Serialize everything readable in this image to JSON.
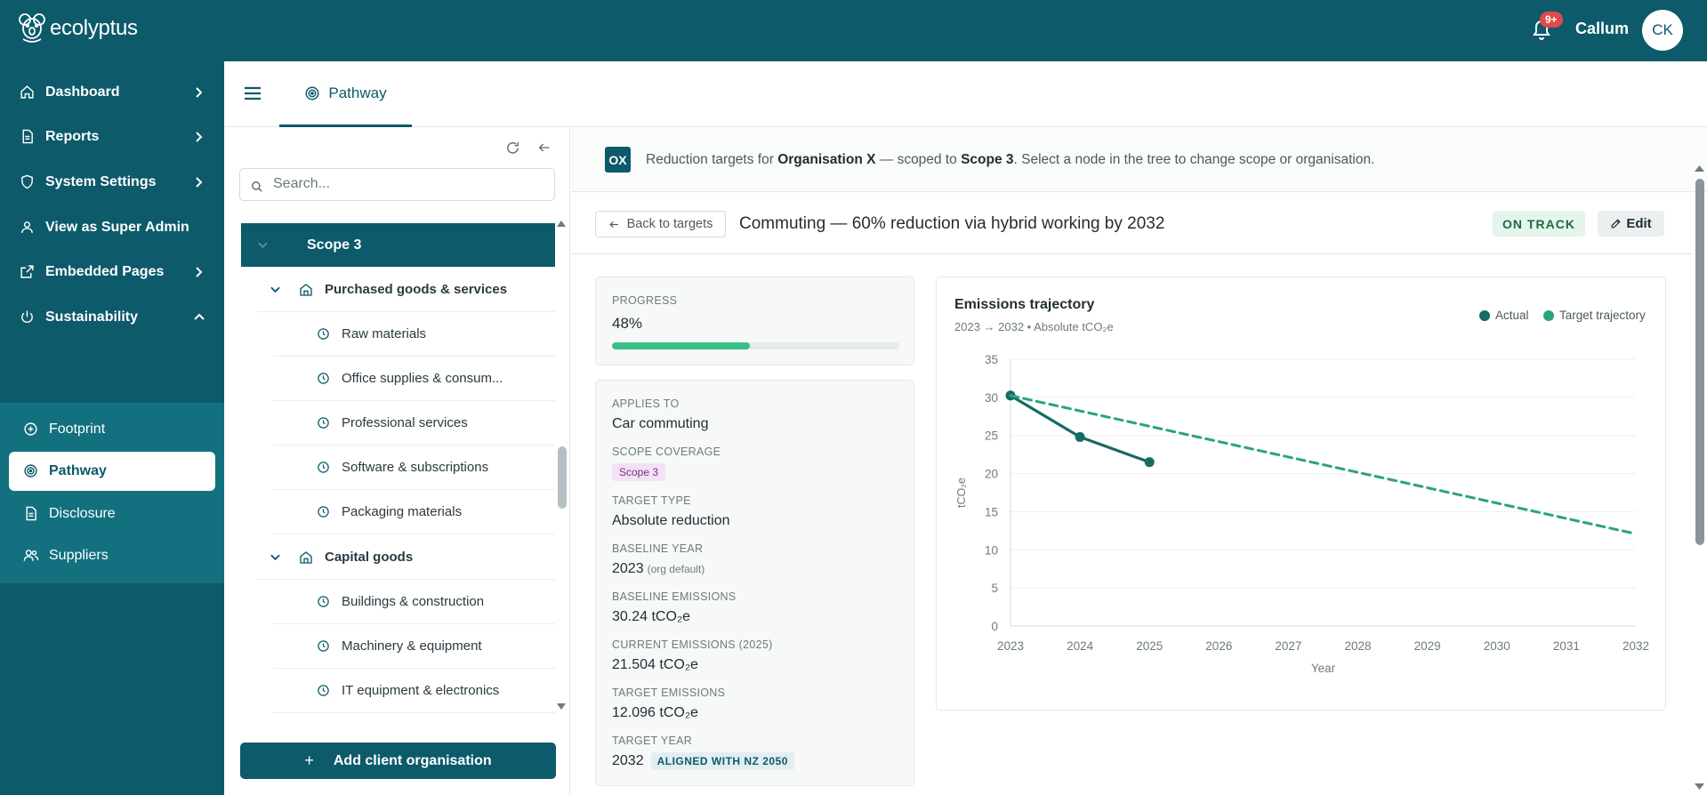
{
  "app": {
    "brand": "ecolyptus"
  },
  "header": {
    "notification_badge": "9+",
    "user_name": "Callum",
    "avatar_initials": "CK"
  },
  "sidebar": {
    "items": [
      {
        "label": "Dashboard",
        "icon": "home-icon"
      },
      {
        "label": "Reports",
        "icon": "document-icon"
      },
      {
        "label": "System Settings",
        "icon": "shield-icon"
      },
      {
        "label": "View as Super Admin",
        "icon": "user-icon"
      },
      {
        "label": "Embedded Pages",
        "icon": "external-link-icon"
      },
      {
        "label": "Sustainability",
        "icon": "power-icon"
      }
    ],
    "sub_items": [
      {
        "label": "Footprint",
        "icon": "plus-circle-icon"
      },
      {
        "label": "Pathway",
        "icon": "target-icon",
        "active": true
      },
      {
        "label": "Disclosure",
        "icon": "document-icon"
      },
      {
        "label": "Suppliers",
        "icon": "users-icon"
      }
    ]
  },
  "tabs": {
    "active": "Pathway"
  },
  "tree": {
    "search_placeholder": "Search...",
    "scope": "Scope 3",
    "groups": [
      {
        "label": "Purchased goods & services",
        "children": [
          "Raw materials",
          "Office supplies & consum...",
          "Professional services",
          "Software & subscriptions",
          "Packaging materials"
        ]
      },
      {
        "label": "Capital goods",
        "children": [
          "Buildings & construction",
          "Machinery & equipment",
          "IT equipment & electronics"
        ]
      }
    ],
    "add_button": "Add client organisation"
  },
  "info_bar": {
    "badge": "OX",
    "prefix": "Reduction targets for ",
    "organisation": "Organisation X",
    "middle": " — scoped to ",
    "scope": "Scope 3",
    "suffix": ". Select a node in the tree to change scope or organisation."
  },
  "target": {
    "back_label": "Back to targets",
    "title": "Commuting — 60% reduction via hybrid working by 2032",
    "status": "ON TRACK",
    "edit_label": "Edit"
  },
  "progress": {
    "label": "PROGRESS",
    "value_text": "48%",
    "fraction": 0.48,
    "color": "#3bbf86"
  },
  "details": {
    "applies_to_label": "APPLIES TO",
    "applies_to": "Car commuting",
    "scope_coverage_label": "SCOPE COVERAGE",
    "scope_coverage": "Scope 3",
    "target_type_label": "TARGET TYPE",
    "target_type": "Absolute reduction",
    "baseline_year_label": "BASELINE YEAR",
    "baseline_year": "2023",
    "baseline_year_note": "(org default)",
    "baseline_emissions_label": "BASELINE EMISSIONS",
    "baseline_emissions": "30.24 tCO₂e",
    "current_emissions_label": "CURRENT EMISSIONS (2025)",
    "current_emissions": "21.504 tCO₂e",
    "target_emissions_label": "TARGET EMISSIONS",
    "target_emissions": "12.096 tCO₂e",
    "target_year_label": "TARGET YEAR",
    "target_year": "2032",
    "target_year_badge": "ALIGNED WITH NZ 2050"
  },
  "chart_data": {
    "type": "line",
    "title": "Emissions trajectory",
    "subtitle": "2023 → 2032 • Absolute tCO₂e",
    "xlabel": "Year",
    "ylabel": "tCO₂e",
    "x": [
      2023,
      2024,
      2025,
      2026,
      2027,
      2028,
      2029,
      2030,
      2031,
      2032
    ],
    "ylim": [
      0,
      35
    ],
    "yticks": [
      0,
      5,
      10,
      15,
      20,
      25,
      30,
      35
    ],
    "grid": true,
    "legend": "top-right",
    "series": [
      {
        "name": "Actual",
        "color": "#166b64",
        "style": "solid",
        "points": [
          [
            2023,
            30.24
          ],
          [
            2024,
            24.8
          ],
          [
            2025,
            21.504
          ]
        ]
      },
      {
        "name": "Target trajectory",
        "color": "#2aa47b",
        "style": "dashed",
        "points": [
          [
            2023,
            30.24
          ],
          [
            2032,
            12.096
          ]
        ]
      }
    ]
  }
}
